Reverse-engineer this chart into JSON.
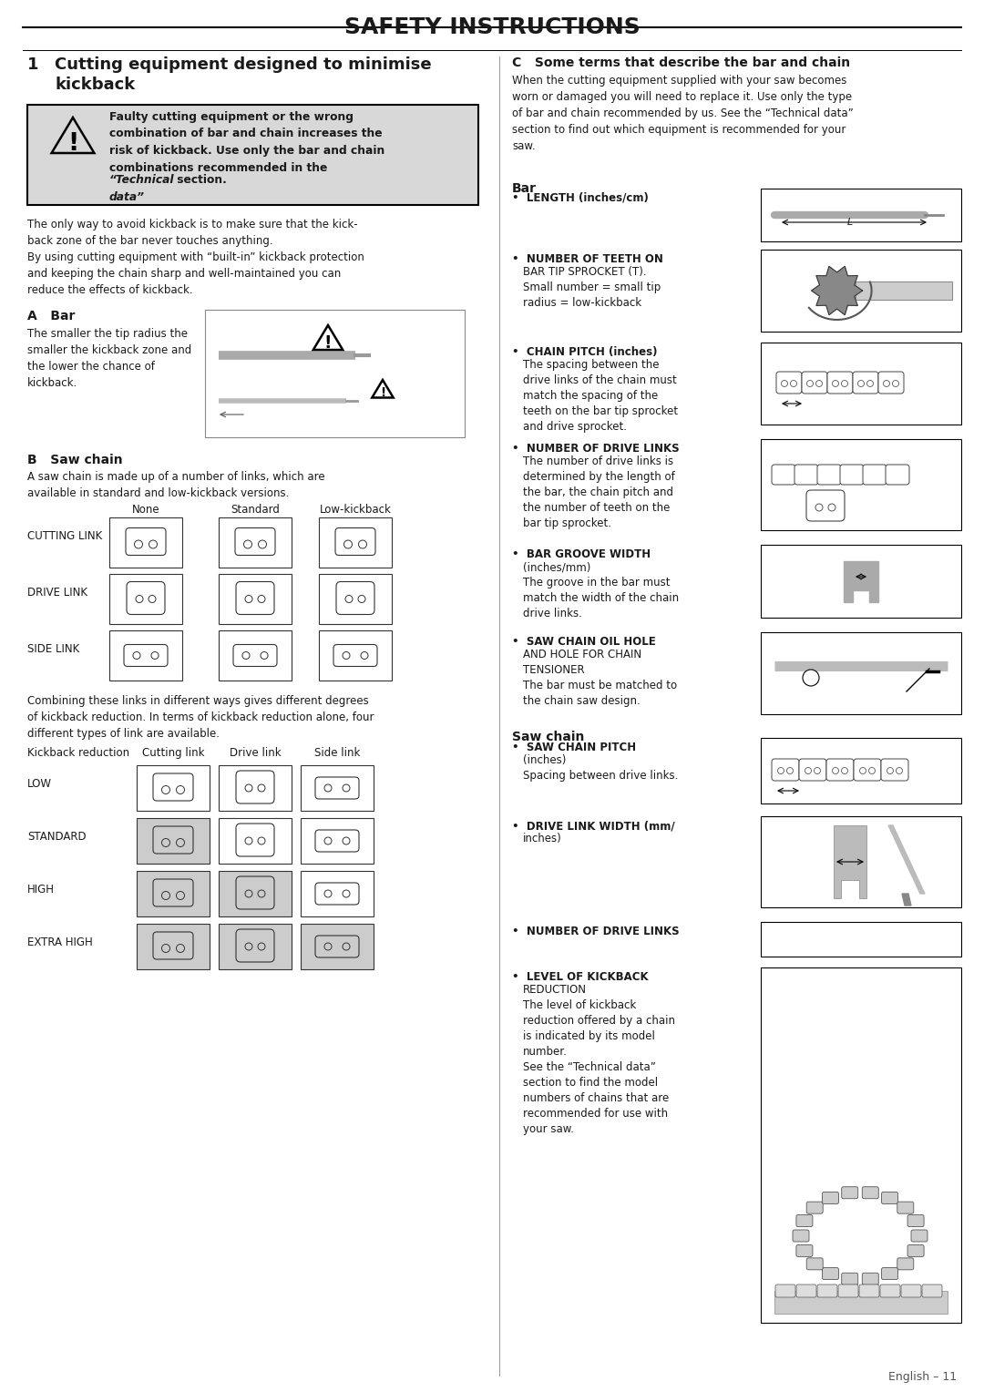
{
  "title": "SAFETY INSTRUCTIONS",
  "section1_num": "1",
  "section1_title": "Cutting equipment designed to minimise\nkickback",
  "warning_bold": "Faulty cutting equipment or the wrong\ncombination of bar and chain increases the\nrisk of kickback. Use only the bar and chain\ncombinations recommended in the ",
  "warning_italic": "“Technical\ndata”",
  "warning_end": " section.",
  "para1": "The only way to avoid kickback is to make sure that the kick-\nback zone of the bar never touches anything.\nBy using cutting equipment with “built-in” kickback protection\nand keeping the chain sharp and well-maintained you can\nreduce the effects of kickback.",
  "sectionA_title": "A   Bar",
  "sectionA_text": "The smaller the tip radius the\nsmaller the kickback zone and\nthe lower the chance of\nkickback.",
  "sectionB_title": "B   Saw chain",
  "sectionB_text": "A saw chain is made up of a number of links, which are\navailable in standard and low-kickback versions.",
  "table_headers": [
    "None",
    "Standard",
    "Low-kickback"
  ],
  "table_rows": [
    "CUTTING LINK",
    "DRIVE LINK",
    "SIDE LINK"
  ],
  "combine_text": "Combining these links in different ways gives different degrees\nof kickback reduction. In terms of kickback reduction alone, four\ndifferent types of link are available.",
  "table2_col0": "Kickback reduction",
  "table2_headers": [
    "Cutting link",
    "Drive link",
    "Side link"
  ],
  "table2_rows": [
    "LOW",
    "STANDARD",
    "HIGH",
    "EXTRA HIGH"
  ],
  "sectionC_title": "C   Some terms that describe the bar and chain",
  "sectionC_intro": "When the cutting equipment supplied with your saw becomes\nworn or damaged you will need to replace it. Use only the type\nof bar and chain recommended by us. See the “Technical data”\nsection to find out which equipment is recommended for your\nsaw.",
  "bar_subtitle": "Bar",
  "bar_items": [
    [
      "LENGTH (inches/cm)",
      ""
    ],
    [
      "NUMBER OF TEETH ON",
      "BAR TIP SPROCKET (T).\nSmall number = small tip\nradius = low-kickback"
    ],
    [
      "CHAIN PITCH (inches)",
      "The spacing between the\ndrive links of the chain must\nmatch the spacing of the\nteeth on the bar tip sprocket\nand drive sprocket."
    ],
    [
      "NUMBER OF DRIVE LINKS",
      "The number of drive links is\ndetermined by the length of\nthe bar, the chain pitch and\nthe number of teeth on the\nbar tip sprocket."
    ],
    [
      "BAR GROOVE WIDTH",
      "(inches/mm)\nThe groove in the bar must\nmatch the width of the chain\ndrive links."
    ],
    [
      "SAW CHAIN OIL HOLE",
      "AND HOLE FOR CHAIN\nTENSIONER\nThe bar must be matched to\nthe chain saw design."
    ]
  ],
  "chain_subtitle": "Saw chain",
  "chain_items": [
    [
      "SAW CHAIN PITCH",
      "(inches)\nSpacing between drive links."
    ],
    [
      "DRIVE LINK WIDTH (mm/",
      "inches)"
    ],
    [
      "NUMBER OF DRIVE LINKS",
      ""
    ],
    [
      "LEVEL OF KICKBACK",
      "REDUCTION\nThe level of kickback\nreduction offered by a chain\nis indicated by its model\nnumber.\nSee the “Technical data”\nsection to find the model\nnumbers of chains that are\nrecommended for use with\nyour saw."
    ]
  ],
  "footer": "English – 11",
  "bg_color": "#ffffff",
  "warning_bg": "#d8d8d8"
}
